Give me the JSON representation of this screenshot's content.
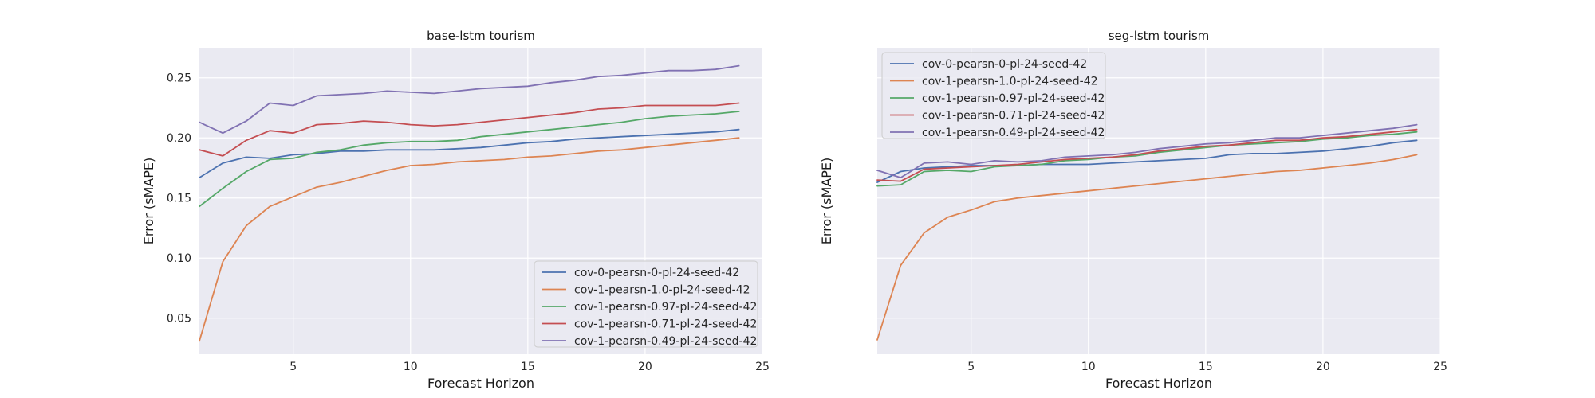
{
  "chart_data": [
    {
      "type": "line",
      "title": "base-lstm tourism",
      "xlabel": "Forecast Horizon",
      "ylabel": "Error (sMAPE)",
      "xlim": [
        1,
        25
      ],
      "ylim": [
        0.02,
        0.275
      ],
      "xticks": [
        5,
        10,
        15,
        20,
        25
      ],
      "yticks": [
        0.05,
        0.1,
        0.15,
        0.2,
        0.25
      ],
      "ytick_labels": [
        "0.05",
        "0.10",
        "0.15",
        "0.20",
        "0.25"
      ],
      "grid": true,
      "legend_position": "lower-right",
      "x": [
        1,
        2,
        3,
        4,
        5,
        6,
        7,
        8,
        9,
        10,
        11,
        12,
        13,
        14,
        15,
        16,
        17,
        18,
        19,
        20,
        21,
        22,
        23,
        24
      ],
      "series": [
        {
          "name": "cov-0-pearsn-0-pl-24-seed-42",
          "color": "#4c72b0",
          "values": [
            0.167,
            0.179,
            0.184,
            0.183,
            0.186,
            0.187,
            0.189,
            0.189,
            0.19,
            0.19,
            0.19,
            0.191,
            0.192,
            0.194,
            0.196,
            0.197,
            0.199,
            0.2,
            0.201,
            0.202,
            0.203,
            0.204,
            0.205,
            0.207
          ]
        },
        {
          "name": "cov-1-pearsn-1.0-pl-24-seed-42",
          "color": "#dd8452",
          "values": [
            0.031,
            0.097,
            0.127,
            0.143,
            0.151,
            0.159,
            0.163,
            0.168,
            0.173,
            0.177,
            0.178,
            0.18,
            0.181,
            0.182,
            0.184,
            0.185,
            0.187,
            0.189,
            0.19,
            0.192,
            0.194,
            0.196,
            0.198,
            0.2
          ]
        },
        {
          "name": "cov-1-pearsn-0.97-pl-24-seed-42",
          "color": "#55a868",
          "values": [
            0.143,
            0.158,
            0.172,
            0.182,
            0.183,
            0.188,
            0.19,
            0.194,
            0.196,
            0.197,
            0.197,
            0.198,
            0.201,
            0.203,
            0.205,
            0.207,
            0.209,
            0.211,
            0.213,
            0.216,
            0.218,
            0.219,
            0.22,
            0.222
          ]
        },
        {
          "name": "cov-1-pearsn-0.71-pl-24-seed-42",
          "color": "#c44e52",
          "values": [
            0.19,
            0.185,
            0.198,
            0.206,
            0.204,
            0.211,
            0.212,
            0.214,
            0.213,
            0.211,
            0.21,
            0.211,
            0.213,
            0.215,
            0.217,
            0.219,
            0.221,
            0.224,
            0.225,
            0.227,
            0.227,
            0.227,
            0.227,
            0.229
          ]
        },
        {
          "name": "cov-1-pearsn-0.49-pl-24-seed-42",
          "color": "#8172b3",
          "values": [
            0.213,
            0.204,
            0.214,
            0.229,
            0.227,
            0.235,
            0.236,
            0.237,
            0.239,
            0.238,
            0.237,
            0.239,
            0.241,
            0.242,
            0.243,
            0.246,
            0.248,
            0.251,
            0.252,
            0.254,
            0.256,
            0.256,
            0.257,
            0.26
          ]
        }
      ]
    },
    {
      "type": "line",
      "title": "seg-lstm tourism",
      "xlabel": "Forecast Horizon",
      "ylabel": "Error (sMAPE)",
      "xlim": [
        1,
        25
      ],
      "ylim": [
        0.02,
        0.275
      ],
      "xticks": [
        5,
        10,
        15,
        20,
        25
      ],
      "yticks": [],
      "ytick_labels": [],
      "grid": true,
      "legend_position": "upper-left",
      "x": [
        1,
        2,
        3,
        4,
        5,
        6,
        7,
        8,
        9,
        10,
        11,
        12,
        13,
        14,
        15,
        16,
        17,
        18,
        19,
        20,
        21,
        22,
        23,
        24
      ],
      "series": [
        {
          "name": "cov-0-pearsn-0-pl-24-seed-42",
          "color": "#4c72b0",
          "values": [
            0.163,
            0.172,
            0.175,
            0.176,
            0.177,
            0.177,
            0.177,
            0.178,
            0.178,
            0.178,
            0.179,
            0.18,
            0.181,
            0.182,
            0.183,
            0.186,
            0.187,
            0.187,
            0.188,
            0.189,
            0.191,
            0.193,
            0.196,
            0.198
          ]
        },
        {
          "name": "cov-1-pearsn-1.0-pl-24-seed-42",
          "color": "#dd8452",
          "values": [
            0.032,
            0.094,
            0.121,
            0.134,
            0.14,
            0.147,
            0.15,
            0.152,
            0.154,
            0.156,
            0.158,
            0.16,
            0.162,
            0.164,
            0.166,
            0.168,
            0.17,
            0.172,
            0.173,
            0.175,
            0.177,
            0.179,
            0.182,
            0.186
          ]
        },
        {
          "name": "cov-1-pearsn-0.97-pl-24-seed-42",
          "color": "#55a868",
          "values": [
            0.16,
            0.161,
            0.172,
            0.173,
            0.172,
            0.176,
            0.177,
            0.178,
            0.181,
            0.182,
            0.184,
            0.185,
            0.188,
            0.19,
            0.192,
            0.194,
            0.195,
            0.196,
            0.197,
            0.199,
            0.2,
            0.202,
            0.203,
            0.205
          ]
        },
        {
          "name": "cov-1-pearsn-0.71-pl-24-seed-42",
          "color": "#c44e52",
          "values": [
            0.165,
            0.164,
            0.174,
            0.175,
            0.176,
            0.177,
            0.178,
            0.18,
            0.182,
            0.183,
            0.184,
            0.186,
            0.189,
            0.191,
            0.193,
            0.194,
            0.196,
            0.198,
            0.198,
            0.2,
            0.201,
            0.203,
            0.205,
            0.207
          ]
        },
        {
          "name": "cov-1-pearsn-0.49-pl-24-seed-42",
          "color": "#8172b3",
          "values": [
            0.173,
            0.167,
            0.179,
            0.18,
            0.178,
            0.181,
            0.18,
            0.181,
            0.184,
            0.185,
            0.186,
            0.188,
            0.191,
            0.193,
            0.195,
            0.196,
            0.198,
            0.2,
            0.2,
            0.202,
            0.204,
            0.206,
            0.208,
            0.211
          ]
        }
      ]
    }
  ],
  "style": {
    "plot_background": "#eaeaf2",
    "grid_color": "#ffffff"
  }
}
